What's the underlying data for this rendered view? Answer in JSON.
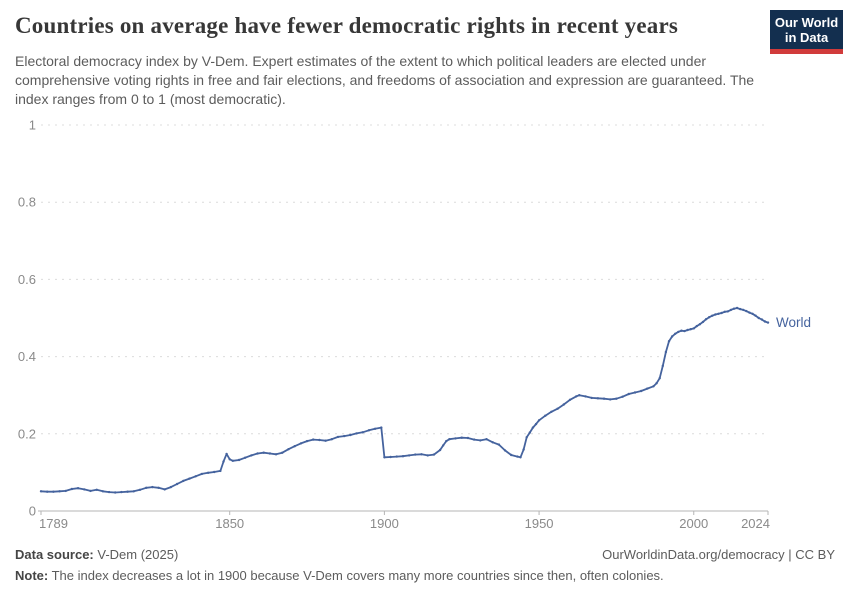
{
  "header": {
    "title": "Countries on average have fewer democratic rights in recent years",
    "subtitle": "Electoral democracy index by V-Dem. Expert estimates of the extent to which political leaders are elected under comprehensive voting rights in free and fair elections, and freedoms of association and expression are guaranteed. The index ranges from 0 to 1 (most democratic).",
    "logo_line1": "Our World",
    "logo_line2": "in Data"
  },
  "footer": {
    "source_label": "Data source:",
    "source_value": "V-Dem (2025)",
    "right_text": "OurWorldinData.org/democracy | CC BY",
    "note_label": "Note:",
    "note_value": "The index decreases a lot in 1900 because V-Dem covers many more countries since then, often colonies."
  },
  "colors": {
    "line": "#45639e",
    "grid": "#dcdcdc",
    "axis": "#b5b5b5",
    "tick_label": "#8a8a8a",
    "logo_bg": "#132f4f",
    "logo_stripe": "#d13b3b"
  },
  "chart_data": {
    "type": "line",
    "title": "Countries on average have fewer democratic rights in recent years",
    "subtitle": "Electoral democracy index by V-Dem. The index ranges from 0 to 1 (most democratic).",
    "xlabel": "",
    "ylabel": "",
    "xlim": [
      1789,
      2024
    ],
    "ylim": [
      0,
      1
    ],
    "x_ticks": [
      1789,
      1850,
      1900,
      1950,
      2000,
      2024
    ],
    "y_ticks": [
      0,
      0.2,
      0.4,
      0.6,
      0.8,
      1
    ],
    "grid": "horizontal-dashed",
    "legend_position": "end-of-line-label",
    "series": [
      {
        "name": "World",
        "points": [
          [
            1789,
            0.051
          ],
          [
            1791,
            0.05
          ],
          [
            1793,
            0.05
          ],
          [
            1795,
            0.051
          ],
          [
            1797,
            0.052
          ],
          [
            1799,
            0.057
          ],
          [
            1801,
            0.059
          ],
          [
            1803,
            0.056
          ],
          [
            1805,
            0.052
          ],
          [
            1807,
            0.055
          ],
          [
            1809,
            0.051
          ],
          [
            1811,
            0.049
          ],
          [
            1813,
            0.048
          ],
          [
            1815,
            0.049
          ],
          [
            1817,
            0.05
          ],
          [
            1819,
            0.051
          ],
          [
            1821,
            0.055
          ],
          [
            1823,
            0.06
          ],
          [
            1825,
            0.062
          ],
          [
            1827,
            0.06
          ],
          [
            1829,
            0.056
          ],
          [
            1831,
            0.062
          ],
          [
            1833,
            0.07
          ],
          [
            1835,
            0.078
          ],
          [
            1837,
            0.084
          ],
          [
            1839,
            0.09
          ],
          [
            1841,
            0.096
          ],
          [
            1843,
            0.099
          ],
          [
            1845,
            0.101
          ],
          [
            1847,
            0.104
          ],
          [
            1848,
            0.128
          ],
          [
            1849,
            0.148
          ],
          [
            1850,
            0.134
          ],
          [
            1851,
            0.13
          ],
          [
            1853,
            0.132
          ],
          [
            1855,
            0.138
          ],
          [
            1857,
            0.144
          ],
          [
            1859,
            0.149
          ],
          [
            1861,
            0.151
          ],
          [
            1863,
            0.149
          ],
          [
            1865,
            0.147
          ],
          [
            1867,
            0.151
          ],
          [
            1869,
            0.16
          ],
          [
            1871,
            0.168
          ],
          [
            1873,
            0.175
          ],
          [
            1875,
            0.181
          ],
          [
            1877,
            0.185
          ],
          [
            1879,
            0.184
          ],
          [
            1881,
            0.182
          ],
          [
            1883,
            0.186
          ],
          [
            1885,
            0.192
          ],
          [
            1887,
            0.194
          ],
          [
            1889,
            0.197
          ],
          [
            1891,
            0.201
          ],
          [
            1893,
            0.204
          ],
          [
            1895,
            0.209
          ],
          [
            1897,
            0.213
          ],
          [
            1899,
            0.216
          ],
          [
            1900,
            0.139
          ],
          [
            1902,
            0.14
          ],
          [
            1904,
            0.141
          ],
          [
            1906,
            0.142
          ],
          [
            1908,
            0.144
          ],
          [
            1910,
            0.146
          ],
          [
            1912,
            0.147
          ],
          [
            1914,
            0.144
          ],
          [
            1916,
            0.146
          ],
          [
            1918,
            0.158
          ],
          [
            1919,
            0.17
          ],
          [
            1920,
            0.181
          ],
          [
            1921,
            0.186
          ],
          [
            1923,
            0.188
          ],
          [
            1925,
            0.19
          ],
          [
            1927,
            0.189
          ],
          [
            1929,
            0.185
          ],
          [
            1931,
            0.183
          ],
          [
            1933,
            0.186
          ],
          [
            1935,
            0.178
          ],
          [
            1937,
            0.172
          ],
          [
            1939,
            0.157
          ],
          [
            1941,
            0.145
          ],
          [
            1943,
            0.141
          ],
          [
            1944,
            0.139
          ],
          [
            1945,
            0.159
          ],
          [
            1946,
            0.191
          ],
          [
            1947,
            0.203
          ],
          [
            1948,
            0.216
          ],
          [
            1949,
            0.225
          ],
          [
            1950,
            0.235
          ],
          [
            1952,
            0.247
          ],
          [
            1954,
            0.257
          ],
          [
            1956,
            0.265
          ],
          [
            1958,
            0.276
          ],
          [
            1960,
            0.288
          ],
          [
            1962,
            0.297
          ],
          [
            1963,
            0.3
          ],
          [
            1965,
            0.297
          ],
          [
            1967,
            0.293
          ],
          [
            1969,
            0.292
          ],
          [
            1971,
            0.291
          ],
          [
            1973,
            0.289
          ],
          [
            1975,
            0.291
          ],
          [
            1977,
            0.296
          ],
          [
            1979,
            0.303
          ],
          [
            1981,
            0.307
          ],
          [
            1983,
            0.311
          ],
          [
            1985,
            0.317
          ],
          [
            1987,
            0.323
          ],
          [
            1988,
            0.331
          ],
          [
            1989,
            0.344
          ],
          [
            1990,
            0.376
          ],
          [
            1991,
            0.412
          ],
          [
            1992,
            0.44
          ],
          [
            1993,
            0.452
          ],
          [
            1994,
            0.459
          ],
          [
            1995,
            0.464
          ],
          [
            1996,
            0.467
          ],
          [
            1997,
            0.466
          ],
          [
            1998,
            0.469
          ],
          [
            1999,
            0.471
          ],
          [
            2000,
            0.473
          ],
          [
            2001,
            0.479
          ],
          [
            2002,
            0.484
          ],
          [
            2003,
            0.49
          ],
          [
            2004,
            0.497
          ],
          [
            2005,
            0.502
          ],
          [
            2006,
            0.506
          ],
          [
            2007,
            0.509
          ],
          [
            2008,
            0.511
          ],
          [
            2009,
            0.513
          ],
          [
            2010,
            0.516
          ],
          [
            2011,
            0.517
          ],
          [
            2012,
            0.521
          ],
          [
            2013,
            0.524
          ],
          [
            2014,
            0.526
          ],
          [
            2015,
            0.523
          ],
          [
            2016,
            0.521
          ],
          [
            2017,
            0.518
          ],
          [
            2018,
            0.514
          ],
          [
            2019,
            0.511
          ],
          [
            2020,
            0.506
          ],
          [
            2021,
            0.5
          ],
          [
            2022,
            0.496
          ],
          [
            2023,
            0.491
          ],
          [
            2024,
            0.488
          ]
        ]
      }
    ]
  }
}
